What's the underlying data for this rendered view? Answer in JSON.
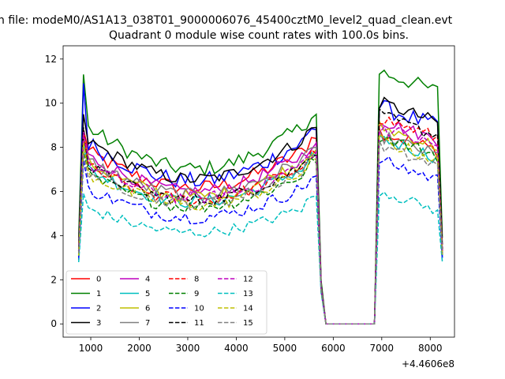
{
  "figure": {
    "suptitle": "n file: modeM0/AS1A13_038T01_9000006076_45400cztM0_level2_quad_clean.evt",
    "title": "Quadrant 0 module wise count rates with 100.0s bins.",
    "offset_label": "+4.4606e8"
  },
  "chart_data": {
    "type": "line",
    "xlim": [
      430,
      8500
    ],
    "ylim": [
      -0.6,
      12.6
    ],
    "x_ticks": [
      1000,
      2000,
      3000,
      4000,
      5000,
      6000,
      7000,
      8000
    ],
    "y_ticks": [
      0,
      2,
      4,
      6,
      8,
      10,
      12
    ],
    "grid": false,
    "legend": {
      "placement": "lower-left",
      "columns": 4
    },
    "series": [
      {
        "name": "0",
        "color": "#ff0000",
        "dash": "solid",
        "base": 7.3,
        "start": 3.3,
        "peak": 8.8,
        "post": 8.7,
        "noise": 0.35
      },
      {
        "name": "1",
        "color": "#008000",
        "dash": "solid",
        "base": 8.4,
        "start": 3.9,
        "peak": 11.3,
        "post": 11.4,
        "noise": 0.35
      },
      {
        "name": "2",
        "color": "#0000ff",
        "dash": "solid",
        "base": 7.7,
        "start": 3.0,
        "peak": 10.9,
        "post": 9.8,
        "noise": 0.4
      },
      {
        "name": "3",
        "color": "#000000",
        "dash": "solid",
        "base": 7.8,
        "start": 3.6,
        "peak": 9.5,
        "post": 10.0,
        "noise": 0.3
      },
      {
        "name": "4",
        "color": "#bf00bf",
        "dash": "solid",
        "base": 7.1,
        "start": 3.4,
        "peak": 8.5,
        "post": 9.2,
        "noise": 0.3
      },
      {
        "name": "5",
        "color": "#00bfbf",
        "dash": "solid",
        "base": 6.5,
        "start": 3.1,
        "peak": 8.1,
        "post": 8.4,
        "noise": 0.3
      },
      {
        "name": "6",
        "color": "#bfbf00",
        "dash": "solid",
        "base": 6.8,
        "start": 3.2,
        "peak": 8.6,
        "post": 8.9,
        "noise": 0.3
      },
      {
        "name": "7",
        "color": "#808080",
        "dash": "solid",
        "base": 6.9,
        "start": 3.3,
        "peak": 8.3,
        "post": 8.5,
        "noise": 0.3
      },
      {
        "name": "8",
        "color": "#ff0000",
        "dash": "dashed",
        "base": 6.6,
        "start": 3.3,
        "peak": 8.6,
        "post": 9.3,
        "noise": 0.3
      },
      {
        "name": "9",
        "color": "#008000",
        "dash": "dashed",
        "base": 6.2,
        "start": 3.1,
        "peak": 7.8,
        "post": 8.5,
        "noise": 0.3
      },
      {
        "name": "10",
        "color": "#0000ff",
        "dash": "dashed",
        "base": 5.6,
        "start": 2.9,
        "peak": 7.4,
        "post": 7.4,
        "noise": 0.3
      },
      {
        "name": "11",
        "color": "#000000",
        "dash": "dashed",
        "base": 6.6,
        "start": 3.4,
        "peak": 8.9,
        "post": 9.4,
        "noise": 0.3
      },
      {
        "name": "12",
        "color": "#bf00bf",
        "dash": "dashed",
        "base": 6.7,
        "start": 3.3,
        "peak": 8.7,
        "post": 8.9,
        "noise": 0.3
      },
      {
        "name": "13",
        "color": "#00bfbf",
        "dash": "dashed",
        "base": 4.7,
        "start": 2.8,
        "peak": 5.9,
        "post": 6.0,
        "noise": 0.25
      },
      {
        "name": "14",
        "color": "#bfbf00",
        "dash": "dashed",
        "base": 6.3,
        "start": 3.1,
        "peak": 8.2,
        "post": 8.3,
        "noise": 0.3
      },
      {
        "name": "15",
        "color": "#808080",
        "dash": "dashed",
        "base": 6.4,
        "start": 3.2,
        "peak": 7.7,
        "post": 8.0,
        "noise": 0.3
      }
    ]
  }
}
